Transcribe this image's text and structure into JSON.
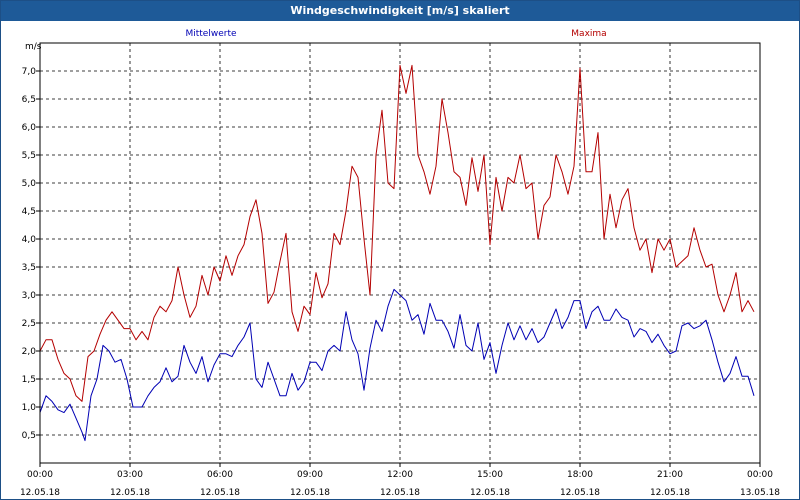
{
  "window": {
    "title": "Windgeschwindigkeit [m/s] skaliert"
  },
  "colors": {
    "titlebar": "#1e5a98",
    "mittel": "#0000b4",
    "maxima": "#b40000",
    "grid": "#000000"
  },
  "chart_data": {
    "type": "line",
    "ylabel": "m/s",
    "ylim": [
      0,
      7.5
    ],
    "yticks": [
      "0,5",
      "1,0",
      "1,5",
      "2,0",
      "2,5",
      "3,0",
      "3,5",
      "4,0",
      "4,5",
      "5,0",
      "5,5",
      "6,0",
      "6,5",
      "7,0"
    ],
    "x_range_hours": [
      0,
      24
    ],
    "x_ticks": [
      {
        "time": "00:00",
        "date": "12.05.18"
      },
      {
        "time": "03:00",
        "date": "12.05.18"
      },
      {
        "time": "06:00",
        "date": "12.05.18"
      },
      {
        "time": "09:00",
        "date": "12.05.18"
      },
      {
        "time": "12:00",
        "date": "12.05.18"
      },
      {
        "time": "15:00",
        "date": "12.05.18"
      },
      {
        "time": "18:00",
        "date": "12.05.18"
      },
      {
        "time": "21:00",
        "date": "12.05.18"
      },
      {
        "time": "00:00",
        "date": "13.05.18"
      }
    ],
    "grid": true,
    "series": [
      {
        "name": "Mittelwerte",
        "color": "#0000b4",
        "points": [
          [
            0.0,
            0.9
          ],
          [
            0.2,
            1.2
          ],
          [
            0.4,
            1.1
          ],
          [
            0.6,
            0.95
          ],
          [
            0.8,
            0.9
          ],
          [
            1.0,
            1.05
          ],
          [
            1.2,
            0.8
          ],
          [
            1.4,
            0.55
          ],
          [
            1.5,
            0.4
          ],
          [
            1.7,
            1.2
          ],
          [
            1.9,
            1.5
          ],
          [
            2.1,
            2.1
          ],
          [
            2.3,
            2.0
          ],
          [
            2.5,
            1.8
          ],
          [
            2.7,
            1.85
          ],
          [
            2.9,
            1.5
          ],
          [
            3.1,
            1.0
          ],
          [
            3.4,
            1.0
          ],
          [
            3.6,
            1.2
          ],
          [
            3.8,
            1.35
          ],
          [
            4.0,
            1.45
          ],
          [
            4.2,
            1.7
          ],
          [
            4.4,
            1.45
          ],
          [
            4.6,
            1.55
          ],
          [
            4.8,
            2.1
          ],
          [
            5.0,
            1.8
          ],
          [
            5.2,
            1.6
          ],
          [
            5.4,
            1.9
          ],
          [
            5.6,
            1.45
          ],
          [
            5.8,
            1.75
          ],
          [
            6.0,
            1.95
          ],
          [
            6.2,
            1.95
          ],
          [
            6.4,
            1.9
          ],
          [
            6.6,
            2.1
          ],
          [
            6.8,
            2.25
          ],
          [
            7.0,
            2.5
          ],
          [
            7.2,
            1.5
          ],
          [
            7.4,
            1.35
          ],
          [
            7.6,
            1.8
          ],
          [
            7.8,
            1.5
          ],
          [
            8.0,
            1.2
          ],
          [
            8.2,
            1.2
          ],
          [
            8.4,
            1.6
          ],
          [
            8.6,
            1.3
          ],
          [
            8.8,
            1.45
          ],
          [
            9.0,
            1.8
          ],
          [
            9.2,
            1.8
          ],
          [
            9.4,
            1.65
          ],
          [
            9.6,
            2.0
          ],
          [
            9.8,
            2.1
          ],
          [
            10.0,
            2.0
          ],
          [
            10.2,
            2.7
          ],
          [
            10.4,
            2.2
          ],
          [
            10.6,
            1.95
          ],
          [
            10.8,
            1.3
          ],
          [
            11.0,
            2.05
          ],
          [
            11.2,
            2.55
          ],
          [
            11.4,
            2.35
          ],
          [
            11.6,
            2.8
          ],
          [
            11.8,
            3.1
          ],
          [
            12.0,
            3.0
          ],
          [
            12.2,
            2.9
          ],
          [
            12.4,
            2.55
          ],
          [
            12.6,
            2.65
          ],
          [
            12.8,
            2.3
          ],
          [
            13.0,
            2.85
          ],
          [
            13.2,
            2.55
          ],
          [
            13.4,
            2.55
          ],
          [
            13.6,
            2.35
          ],
          [
            13.8,
            2.05
          ],
          [
            14.0,
            2.65
          ],
          [
            14.2,
            2.1
          ],
          [
            14.4,
            2.0
          ],
          [
            14.6,
            2.5
          ],
          [
            14.8,
            1.85
          ],
          [
            15.0,
            2.15
          ],
          [
            15.2,
            1.6
          ],
          [
            15.4,
            2.1
          ],
          [
            15.6,
            2.5
          ],
          [
            15.8,
            2.2
          ],
          [
            16.0,
            2.45
          ],
          [
            16.2,
            2.2
          ],
          [
            16.4,
            2.4
          ],
          [
            16.6,
            2.15
          ],
          [
            16.8,
            2.25
          ],
          [
            17.0,
            2.5
          ],
          [
            17.2,
            2.75
          ],
          [
            17.4,
            2.4
          ],
          [
            17.6,
            2.6
          ],
          [
            17.8,
            2.9
          ],
          [
            18.0,
            2.9
          ],
          [
            18.2,
            2.4
          ],
          [
            18.4,
            2.7
          ],
          [
            18.6,
            2.8
          ],
          [
            18.8,
            2.55
          ],
          [
            19.0,
            2.55
          ],
          [
            19.2,
            2.75
          ],
          [
            19.4,
            2.6
          ],
          [
            19.6,
            2.55
          ],
          [
            19.8,
            2.25
          ],
          [
            20.0,
            2.4
          ],
          [
            20.2,
            2.35
          ],
          [
            20.4,
            2.15
          ],
          [
            20.6,
            2.3
          ],
          [
            20.8,
            2.1
          ],
          [
            21.0,
            1.95
          ],
          [
            21.2,
            2.0
          ],
          [
            21.4,
            2.45
          ],
          [
            21.6,
            2.5
          ],
          [
            21.8,
            2.4
          ],
          [
            22.0,
            2.45
          ],
          [
            22.2,
            2.55
          ],
          [
            22.4,
            2.2
          ],
          [
            22.6,
            1.8
          ],
          [
            22.8,
            1.45
          ],
          [
            23.0,
            1.6
          ],
          [
            23.2,
            1.9
          ],
          [
            23.4,
            1.55
          ],
          [
            23.6,
            1.55
          ],
          [
            23.8,
            1.2
          ]
        ]
      },
      {
        "name": "Maxima",
        "color": "#b40000",
        "points": [
          [
            0.0,
            2.0
          ],
          [
            0.2,
            2.2
          ],
          [
            0.4,
            2.2
          ],
          [
            0.6,
            1.85
          ],
          [
            0.8,
            1.6
          ],
          [
            1.0,
            1.5
          ],
          [
            1.2,
            1.2
          ],
          [
            1.4,
            1.1
          ],
          [
            1.6,
            1.9
          ],
          [
            1.8,
            2.0
          ],
          [
            2.0,
            2.3
          ],
          [
            2.2,
            2.55
          ],
          [
            2.4,
            2.7
          ],
          [
            2.6,
            2.55
          ],
          [
            2.8,
            2.4
          ],
          [
            3.0,
            2.4
          ],
          [
            3.2,
            2.2
          ],
          [
            3.4,
            2.35
          ],
          [
            3.6,
            2.2
          ],
          [
            3.8,
            2.6
          ],
          [
            4.0,
            2.8
          ],
          [
            4.2,
            2.7
          ],
          [
            4.4,
            2.9
          ],
          [
            4.6,
            3.5
          ],
          [
            4.8,
            3.0
          ],
          [
            5.0,
            2.6
          ],
          [
            5.2,
            2.8
          ],
          [
            5.4,
            3.35
          ],
          [
            5.6,
            3.0
          ],
          [
            5.8,
            3.5
          ],
          [
            6.0,
            3.25
          ],
          [
            6.2,
            3.7
          ],
          [
            6.4,
            3.35
          ],
          [
            6.6,
            3.7
          ],
          [
            6.8,
            3.9
          ],
          [
            7.0,
            4.4
          ],
          [
            7.2,
            4.7
          ],
          [
            7.4,
            4.1
          ],
          [
            7.6,
            2.85
          ],
          [
            7.8,
            3.05
          ],
          [
            8.0,
            3.6
          ],
          [
            8.2,
            4.1
          ],
          [
            8.4,
            2.7
          ],
          [
            8.6,
            2.35
          ],
          [
            8.8,
            2.8
          ],
          [
            9.0,
            2.65
          ],
          [
            9.2,
            3.4
          ],
          [
            9.4,
            2.95
          ],
          [
            9.6,
            3.2
          ],
          [
            9.8,
            4.1
          ],
          [
            10.0,
            3.9
          ],
          [
            10.2,
            4.5
          ],
          [
            10.4,
            5.3
          ],
          [
            10.6,
            5.1
          ],
          [
            10.8,
            4.0
          ],
          [
            11.0,
            3.0
          ],
          [
            11.2,
            5.5
          ],
          [
            11.4,
            6.3
          ],
          [
            11.6,
            5.0
          ],
          [
            11.8,
            4.9
          ],
          [
            12.0,
            7.1
          ],
          [
            12.2,
            6.6
          ],
          [
            12.4,
            7.1
          ],
          [
            12.6,
            5.5
          ],
          [
            12.8,
            5.2
          ],
          [
            13.0,
            4.8
          ],
          [
            13.2,
            5.3
          ],
          [
            13.4,
            6.5
          ],
          [
            13.6,
            5.9
          ],
          [
            13.8,
            5.2
          ],
          [
            14.0,
            5.1
          ],
          [
            14.2,
            4.6
          ],
          [
            14.4,
            5.45
          ],
          [
            14.6,
            4.85
          ],
          [
            14.8,
            5.5
          ],
          [
            15.0,
            3.9
          ],
          [
            15.2,
            5.1
          ],
          [
            15.4,
            4.5
          ],
          [
            15.6,
            5.1
          ],
          [
            15.8,
            5.0
          ],
          [
            16.0,
            5.5
          ],
          [
            16.2,
            4.9
          ],
          [
            16.4,
            5.0
          ],
          [
            16.6,
            4.0
          ],
          [
            16.8,
            4.6
          ],
          [
            17.0,
            4.75
          ],
          [
            17.2,
            5.5
          ],
          [
            17.4,
            5.2
          ],
          [
            17.6,
            4.8
          ],
          [
            17.8,
            5.3
          ],
          [
            18.0,
            7.05
          ],
          [
            18.2,
            5.2
          ],
          [
            18.4,
            5.2
          ],
          [
            18.6,
            5.9
          ],
          [
            18.8,
            4.0
          ],
          [
            19.0,
            4.8
          ],
          [
            19.2,
            4.2
          ],
          [
            19.4,
            4.7
          ],
          [
            19.6,
            4.9
          ],
          [
            19.8,
            4.2
          ],
          [
            20.0,
            3.8
          ],
          [
            20.2,
            4.0
          ],
          [
            20.4,
            3.4
          ],
          [
            20.6,
            4.0
          ],
          [
            20.8,
            3.8
          ],
          [
            21.0,
            4.0
          ],
          [
            21.2,
            3.5
          ],
          [
            21.4,
            3.6
          ],
          [
            21.6,
            3.7
          ],
          [
            21.8,
            4.2
          ],
          [
            22.0,
            3.8
          ],
          [
            22.2,
            3.5
          ],
          [
            22.4,
            3.55
          ],
          [
            22.6,
            3.0
          ],
          [
            22.8,
            2.7
          ],
          [
            23.0,
            3.0
          ],
          [
            23.2,
            3.4
          ],
          [
            23.4,
            2.7
          ],
          [
            23.6,
            2.9
          ],
          [
            23.8,
            2.7
          ]
        ]
      }
    ]
  }
}
